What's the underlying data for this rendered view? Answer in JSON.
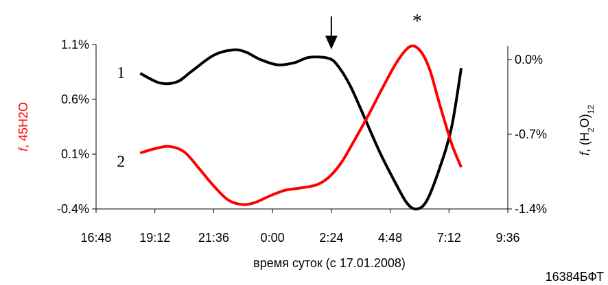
{
  "chart_data": {
    "type": "line",
    "xlabel": "время суток (с 17.01.2008)",
    "code_label": "16384БФТ",
    "x_ticks": [
      "16:48",
      "19:12",
      "21:36",
      "0:00",
      "2:24",
      "4:48",
      "7:12",
      "9:36"
    ],
    "x_tick_hours": [
      16.8,
      19.2,
      21.6,
      24.0,
      26.4,
      28.8,
      31.2,
      33.6
    ],
    "xlim_hours": [
      16.8,
      33.6
    ],
    "left_axis": {
      "label_italic": "f",
      "label_rest": ", 45H2O",
      "color": "#ff0000",
      "ticks": [
        "1.1%",
        "0.6%",
        "0.1%",
        "-0.4%"
      ],
      "tick_values": [
        1.1,
        0.6,
        0.1,
        -0.4
      ],
      "ylim": [
        -0.4,
        1.1
      ]
    },
    "right_axis": {
      "label_italic": "f",
      "label_pre": ", (H",
      "label_sub1": "2",
      "label_mid": "O)",
      "label_sub2": "12",
      "color": "#000000",
      "ticks": [
        "0.0%",
        "-0.7%",
        "-1.4%"
      ],
      "tick_values": [
        0.0,
        -0.7,
        -1.4
      ],
      "ylim": [
        -1.4,
        0.14
      ]
    },
    "series": [
      {
        "label": "1",
        "axis": "right",
        "color": "#000000",
        "x": [
          18.6,
          19.4,
          20.1,
          20.7,
          21.6,
          22.4,
          22.9,
          23.5,
          24.2,
          24.9,
          25.5,
          26.3,
          26.7,
          27.2,
          27.8,
          28.4,
          29.0,
          29.5,
          29.9,
          30.3,
          30.8,
          31.3,
          31.7
        ],
        "y": [
          -0.13,
          -0.22,
          -0.21,
          -0.11,
          0.04,
          0.09,
          0.07,
          0.0,
          -0.05,
          -0.03,
          0.02,
          0.01,
          -0.07,
          -0.26,
          -0.57,
          -0.88,
          -1.15,
          -1.35,
          -1.4,
          -1.32,
          -1.03,
          -0.64,
          -0.08
        ]
      },
      {
        "label": "2",
        "axis": "left",
        "color": "#ff0000",
        "x": [
          18.6,
          19.2,
          19.8,
          20.4,
          21.0,
          21.6,
          22.2,
          22.8,
          23.3,
          23.9,
          24.5,
          25.1,
          25.8,
          26.3,
          26.8,
          27.3,
          27.9,
          28.5,
          29.1,
          29.6,
          30.0,
          30.4,
          30.8,
          31.3,
          31.7
        ],
        "y": [
          0.11,
          0.15,
          0.17,
          0.12,
          -0.03,
          -0.19,
          -0.32,
          -0.36,
          -0.34,
          -0.28,
          -0.23,
          -0.21,
          -0.18,
          -0.11,
          0.02,
          0.21,
          0.45,
          0.71,
          0.95,
          1.08,
          1.05,
          0.88,
          0.57,
          0.2,
          -0.02
        ]
      }
    ],
    "annotations": [
      {
        "type": "arrow-down",
        "x_hour": 26.4
      },
      {
        "type": "text",
        "text": "*",
        "x_hour": 29.9
      }
    ]
  }
}
